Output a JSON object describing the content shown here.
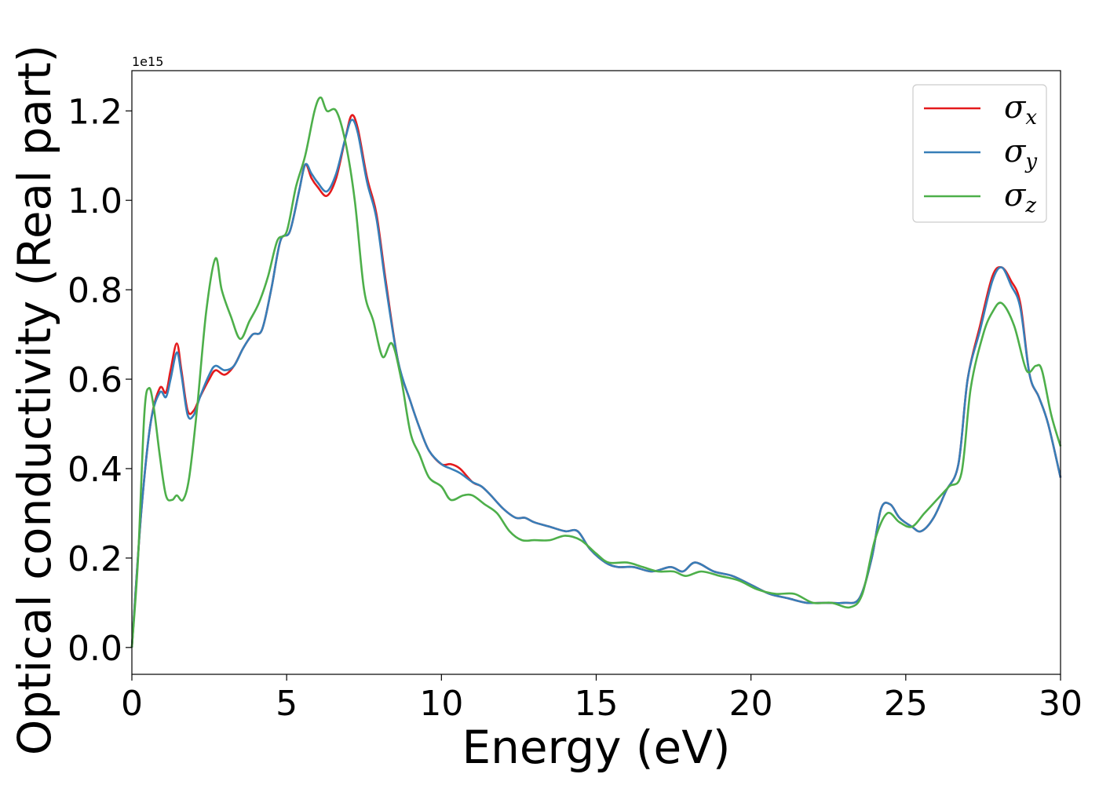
{
  "chart_data": {
    "type": "line",
    "xlabel": "Energy (eV)",
    "ylabel": "Optical conductivity (Real part)",
    "y_offset_text": "1e15",
    "xlim": [
      0,
      30
    ],
    "ylim": [
      -0.06,
      1.29
    ],
    "x_ticks": [
      0,
      5,
      10,
      15,
      20,
      25,
      30
    ],
    "x_tick_labels": [
      "0",
      "5",
      "10",
      "15",
      "20",
      "25",
      "30"
    ],
    "y_ticks": [
      0.0,
      0.2,
      0.4,
      0.6,
      0.8,
      1.0,
      1.2
    ],
    "y_tick_labels": [
      "0.0",
      "0.2",
      "0.4",
      "0.6",
      "0.8",
      "1.0",
      "1.2"
    ],
    "grid": false,
    "legend_position": "top-right",
    "series": [
      {
        "name": "σx",
        "color": "#e41a1c",
        "points": [
          [
            0,
            0.0
          ],
          [
            0.3,
            0.3
          ],
          [
            0.6,
            0.5
          ],
          [
            0.9,
            0.58
          ],
          [
            1.1,
            0.57
          ],
          [
            1.25,
            0.62
          ],
          [
            1.45,
            0.68
          ],
          [
            1.6,
            0.62
          ],
          [
            1.8,
            0.53
          ],
          [
            2.0,
            0.53
          ],
          [
            2.2,
            0.56
          ],
          [
            2.5,
            0.6
          ],
          [
            2.7,
            0.62
          ],
          [
            3.0,
            0.61
          ],
          [
            3.3,
            0.63
          ],
          [
            3.6,
            0.67
          ],
          [
            3.9,
            0.7
          ],
          [
            4.2,
            0.71
          ],
          [
            4.5,
            0.8
          ],
          [
            4.8,
            0.91
          ],
          [
            5.1,
            0.93
          ],
          [
            5.4,
            1.02
          ],
          [
            5.6,
            1.08
          ],
          [
            5.8,
            1.05
          ],
          [
            6.0,
            1.03
          ],
          [
            6.3,
            1.01
          ],
          [
            6.6,
            1.05
          ],
          [
            6.9,
            1.14
          ],
          [
            7.1,
            1.19
          ],
          [
            7.3,
            1.16
          ],
          [
            7.6,
            1.05
          ],
          [
            7.9,
            0.97
          ],
          [
            8.2,
            0.82
          ],
          [
            8.6,
            0.64
          ],
          [
            9.0,
            0.55
          ],
          [
            9.3,
            0.49
          ],
          [
            9.6,
            0.44
          ],
          [
            10.0,
            0.41
          ],
          [
            10.3,
            0.41
          ],
          [
            10.6,
            0.4
          ],
          [
            11.0,
            0.37
          ],
          [
            11.3,
            0.36
          ],
          [
            11.6,
            0.34
          ],
          [
            12.0,
            0.31
          ],
          [
            12.4,
            0.29
          ],
          [
            12.7,
            0.29
          ],
          [
            13.0,
            0.28
          ],
          [
            13.5,
            0.27
          ],
          [
            14.0,
            0.26
          ],
          [
            14.4,
            0.26
          ],
          [
            14.8,
            0.22
          ],
          [
            15.3,
            0.19
          ],
          [
            15.7,
            0.18
          ],
          [
            16.2,
            0.18
          ],
          [
            16.8,
            0.17
          ],
          [
            17.4,
            0.18
          ],
          [
            17.8,
            0.17
          ],
          [
            18.2,
            0.19
          ],
          [
            18.8,
            0.17
          ],
          [
            19.4,
            0.16
          ],
          [
            20.0,
            0.14
          ],
          [
            20.6,
            0.12
          ],
          [
            21.2,
            0.11
          ],
          [
            21.8,
            0.1
          ],
          [
            22.4,
            0.1
          ],
          [
            23.0,
            0.1
          ],
          [
            23.5,
            0.11
          ],
          [
            23.9,
            0.2
          ],
          [
            24.2,
            0.31
          ],
          [
            24.5,
            0.32
          ],
          [
            24.8,
            0.29
          ],
          [
            25.2,
            0.27
          ],
          [
            25.5,
            0.26
          ],
          [
            25.9,
            0.29
          ],
          [
            26.3,
            0.35
          ],
          [
            26.7,
            0.41
          ],
          [
            27.0,
            0.6
          ],
          [
            27.4,
            0.72
          ],
          [
            27.8,
            0.83
          ],
          [
            28.1,
            0.85
          ],
          [
            28.4,
            0.82
          ],
          [
            28.7,
            0.77
          ],
          [
            29.0,
            0.61
          ],
          [
            29.3,
            0.56
          ],
          [
            29.6,
            0.5
          ],
          [
            30.0,
            0.38
          ]
        ]
      },
      {
        "name": "σy",
        "color": "#377eb8",
        "points": [
          [
            0,
            0.0
          ],
          [
            0.3,
            0.3
          ],
          [
            0.6,
            0.5
          ],
          [
            0.9,
            0.57
          ],
          [
            1.1,
            0.56
          ],
          [
            1.25,
            0.6
          ],
          [
            1.45,
            0.66
          ],
          [
            1.6,
            0.61
          ],
          [
            1.8,
            0.52
          ],
          [
            2.0,
            0.52
          ],
          [
            2.2,
            0.56
          ],
          [
            2.5,
            0.61
          ],
          [
            2.7,
            0.63
          ],
          [
            3.0,
            0.62
          ],
          [
            3.3,
            0.63
          ],
          [
            3.6,
            0.67
          ],
          [
            3.9,
            0.7
          ],
          [
            4.2,
            0.71
          ],
          [
            4.5,
            0.8
          ],
          [
            4.8,
            0.91
          ],
          [
            5.1,
            0.93
          ],
          [
            5.4,
            1.02
          ],
          [
            5.6,
            1.08
          ],
          [
            5.8,
            1.06
          ],
          [
            6.0,
            1.04
          ],
          [
            6.3,
            1.02
          ],
          [
            6.6,
            1.06
          ],
          [
            6.9,
            1.14
          ],
          [
            7.1,
            1.18
          ],
          [
            7.3,
            1.15
          ],
          [
            7.6,
            1.04
          ],
          [
            7.9,
            0.96
          ],
          [
            8.2,
            0.81
          ],
          [
            8.6,
            0.64
          ],
          [
            9.0,
            0.55
          ],
          [
            9.3,
            0.49
          ],
          [
            9.6,
            0.44
          ],
          [
            10.0,
            0.41
          ],
          [
            10.3,
            0.4
          ],
          [
            10.6,
            0.39
          ],
          [
            11.0,
            0.37
          ],
          [
            11.3,
            0.36
          ],
          [
            11.6,
            0.34
          ],
          [
            12.0,
            0.31
          ],
          [
            12.4,
            0.29
          ],
          [
            12.7,
            0.29
          ],
          [
            13.0,
            0.28
          ],
          [
            13.5,
            0.27
          ],
          [
            14.0,
            0.26
          ],
          [
            14.4,
            0.26
          ],
          [
            14.8,
            0.22
          ],
          [
            15.3,
            0.19
          ],
          [
            15.7,
            0.18
          ],
          [
            16.2,
            0.18
          ],
          [
            16.8,
            0.17
          ],
          [
            17.4,
            0.18
          ],
          [
            17.8,
            0.17
          ],
          [
            18.2,
            0.19
          ],
          [
            18.8,
            0.17
          ],
          [
            19.4,
            0.16
          ],
          [
            20.0,
            0.14
          ],
          [
            20.6,
            0.12
          ],
          [
            21.2,
            0.11
          ],
          [
            21.8,
            0.1
          ],
          [
            22.4,
            0.1
          ],
          [
            23.0,
            0.1
          ],
          [
            23.5,
            0.11
          ],
          [
            23.9,
            0.2
          ],
          [
            24.2,
            0.31
          ],
          [
            24.5,
            0.32
          ],
          [
            24.8,
            0.29
          ],
          [
            25.2,
            0.27
          ],
          [
            25.5,
            0.26
          ],
          [
            25.9,
            0.29
          ],
          [
            26.3,
            0.35
          ],
          [
            26.7,
            0.41
          ],
          [
            27.0,
            0.6
          ],
          [
            27.4,
            0.71
          ],
          [
            27.8,
            0.82
          ],
          [
            28.1,
            0.85
          ],
          [
            28.4,
            0.81
          ],
          [
            28.7,
            0.76
          ],
          [
            29.0,
            0.61
          ],
          [
            29.3,
            0.56
          ],
          [
            29.6,
            0.5
          ],
          [
            30.0,
            0.38
          ]
        ]
      },
      {
        "name": "σz",
        "color": "#4daf4a",
        "points": [
          [
            0,
            0.0
          ],
          [
            0.2,
            0.2
          ],
          [
            0.4,
            0.52
          ],
          [
            0.55,
            0.58
          ],
          [
            0.7,
            0.54
          ],
          [
            0.9,
            0.43
          ],
          [
            1.1,
            0.34
          ],
          [
            1.3,
            0.33
          ],
          [
            1.45,
            0.34
          ],
          [
            1.65,
            0.33
          ],
          [
            1.85,
            0.38
          ],
          [
            2.1,
            0.53
          ],
          [
            2.4,
            0.75
          ],
          [
            2.7,
            0.87
          ],
          [
            2.9,
            0.8
          ],
          [
            3.2,
            0.74
          ],
          [
            3.5,
            0.69
          ],
          [
            3.8,
            0.73
          ],
          [
            4.1,
            0.77
          ],
          [
            4.4,
            0.83
          ],
          [
            4.7,
            0.91
          ],
          [
            5.0,
            0.93
          ],
          [
            5.3,
            1.03
          ],
          [
            5.6,
            1.1
          ],
          [
            5.9,
            1.2
          ],
          [
            6.1,
            1.23
          ],
          [
            6.3,
            1.2
          ],
          [
            6.6,
            1.2
          ],
          [
            6.9,
            1.13
          ],
          [
            7.2,
            1.0
          ],
          [
            7.5,
            0.8
          ],
          [
            7.8,
            0.73
          ],
          [
            8.1,
            0.65
          ],
          [
            8.4,
            0.68
          ],
          [
            8.7,
            0.6
          ],
          [
            9.0,
            0.48
          ],
          [
            9.3,
            0.43
          ],
          [
            9.6,
            0.38
          ],
          [
            10.0,
            0.36
          ],
          [
            10.3,
            0.33
          ],
          [
            10.7,
            0.34
          ],
          [
            11.0,
            0.34
          ],
          [
            11.4,
            0.32
          ],
          [
            11.8,
            0.3
          ],
          [
            12.2,
            0.26
          ],
          [
            12.6,
            0.24
          ],
          [
            13.0,
            0.24
          ],
          [
            13.5,
            0.24
          ],
          [
            14.0,
            0.25
          ],
          [
            14.5,
            0.24
          ],
          [
            15.0,
            0.21
          ],
          [
            15.4,
            0.19
          ],
          [
            16.0,
            0.19
          ],
          [
            16.5,
            0.18
          ],
          [
            17.0,
            0.17
          ],
          [
            17.5,
            0.17
          ],
          [
            17.9,
            0.16
          ],
          [
            18.4,
            0.17
          ],
          [
            19.0,
            0.16
          ],
          [
            19.6,
            0.15
          ],
          [
            20.2,
            0.13
          ],
          [
            20.8,
            0.12
          ],
          [
            21.4,
            0.12
          ],
          [
            22.0,
            0.1
          ],
          [
            22.6,
            0.1
          ],
          [
            23.2,
            0.09
          ],
          [
            23.6,
            0.12
          ],
          [
            24.0,
            0.24
          ],
          [
            24.4,
            0.3
          ],
          [
            24.8,
            0.28
          ],
          [
            25.2,
            0.27
          ],
          [
            25.6,
            0.3
          ],
          [
            26.0,
            0.33
          ],
          [
            26.4,
            0.36
          ],
          [
            26.8,
            0.39
          ],
          [
            27.1,
            0.58
          ],
          [
            27.5,
            0.7
          ],
          [
            27.8,
            0.75
          ],
          [
            28.1,
            0.77
          ],
          [
            28.5,
            0.72
          ],
          [
            28.9,
            0.62
          ],
          [
            29.2,
            0.63
          ],
          [
            29.4,
            0.62
          ],
          [
            29.7,
            0.52
          ],
          [
            30.0,
            0.45
          ]
        ]
      }
    ]
  }
}
